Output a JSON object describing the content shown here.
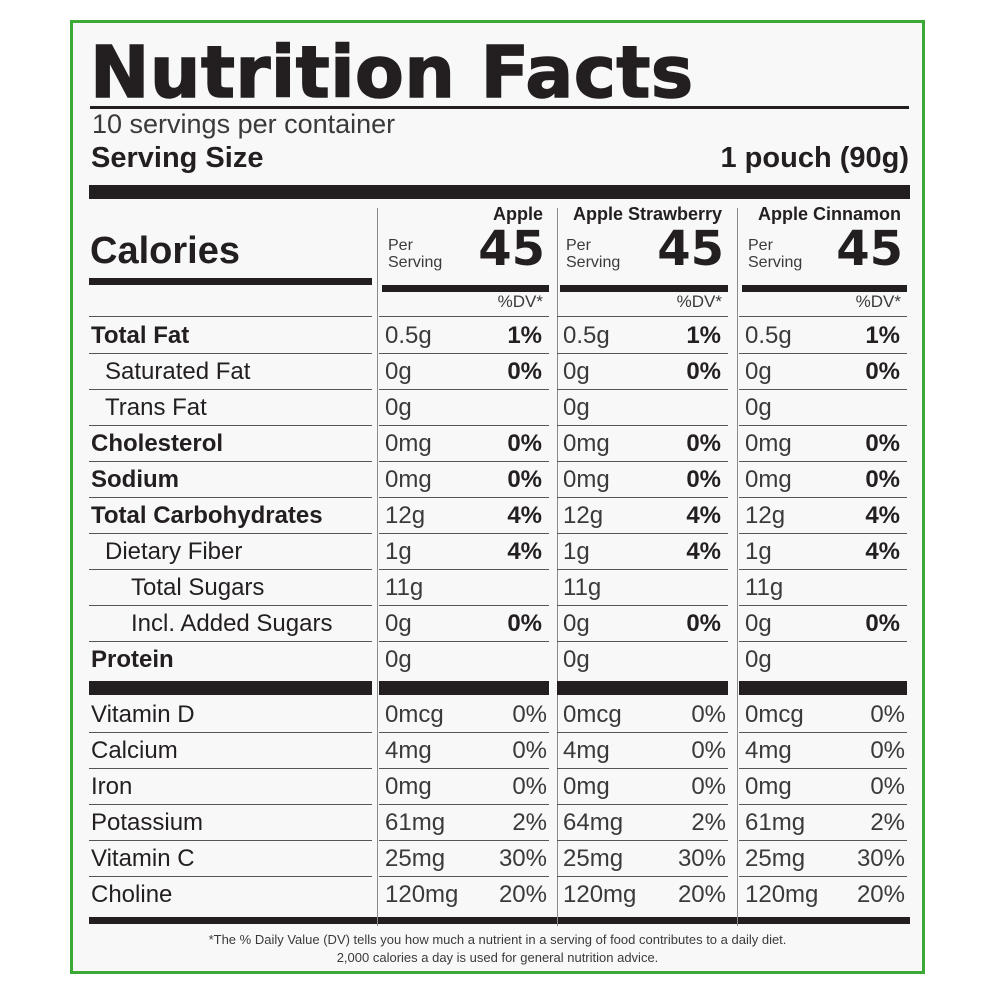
{
  "label": {
    "title": "Nutrition Facts",
    "servings_per_container": "10 servings per container",
    "serving_size_label": "Serving Size",
    "serving_size_value": "1 pouch (90g)",
    "calories_label": "Calories",
    "dv_header": "%DV*",
    "per_serving_line1": "Per",
    "per_serving_line2": "Serving",
    "footnote_line1": "*The % Daily Value (DV) tells you how much a nutrient in a serving of food contributes to a daily diet.",
    "footnote_line2": "2,000 calories a day is used for general nutrition advice."
  },
  "columns": [
    {
      "name": "Apple",
      "calories": "45"
    },
    {
      "name": "Apple Strawberry",
      "calories": "45"
    },
    {
      "name": "Apple Cinnamon",
      "calories": "45"
    }
  ],
  "nutrients": [
    {
      "label": "Total Fat",
      "bold": true,
      "indent": 0,
      "values": [
        [
          "0.5g",
          "1%"
        ],
        [
          "0.5g",
          "1%"
        ],
        [
          "0.5g",
          "1%"
        ]
      ]
    },
    {
      "label": "Saturated Fat",
      "bold": false,
      "indent": 1,
      "values": [
        [
          "0g",
          "0%"
        ],
        [
          "0g",
          "0%"
        ],
        [
          "0g",
          "0%"
        ]
      ]
    },
    {
      "label": "Trans Fat",
      "bold": false,
      "indent": 1,
      "values": [
        [
          "0g",
          ""
        ],
        [
          "0g",
          ""
        ],
        [
          "0g",
          ""
        ]
      ]
    },
    {
      "label": "Cholesterol",
      "bold": true,
      "indent": 0,
      "values": [
        [
          "0mg",
          "0%"
        ],
        [
          "0mg",
          "0%"
        ],
        [
          "0mg",
          "0%"
        ]
      ]
    },
    {
      "label": "Sodium",
      "bold": true,
      "indent": 0,
      "values": [
        [
          "0mg",
          "0%"
        ],
        [
          "0mg",
          "0%"
        ],
        [
          "0mg",
          "0%"
        ]
      ]
    },
    {
      "label": "Total Carbohydrates",
      "bold": true,
      "indent": 0,
      "values": [
        [
          "12g",
          "4%"
        ],
        [
          "12g",
          "4%"
        ],
        [
          "12g",
          "4%"
        ]
      ]
    },
    {
      "label": "Dietary Fiber",
      "bold": false,
      "indent": 1,
      "values": [
        [
          "1g",
          "4%"
        ],
        [
          "1g",
          "4%"
        ],
        [
          "1g",
          "4%"
        ]
      ]
    },
    {
      "label": "Total Sugars",
      "bold": false,
      "indent": 2,
      "values": [
        [
          "11g",
          ""
        ],
        [
          "11g",
          ""
        ],
        [
          "11g",
          ""
        ]
      ]
    },
    {
      "label": "Incl. Added Sugars",
      "bold": false,
      "indent": 2,
      "values": [
        [
          "0g",
          "0%"
        ],
        [
          "0g",
          "0%"
        ],
        [
          "0g",
          "0%"
        ]
      ]
    },
    {
      "label": "Protein",
      "bold": true,
      "indent": 0,
      "values": [
        [
          "0g",
          ""
        ],
        [
          "0g",
          ""
        ],
        [
          "0g",
          ""
        ]
      ]
    }
  ],
  "vitamins": [
    {
      "label": "Vitamin D",
      "values": [
        [
          "0mcg",
          "0%"
        ],
        [
          "0mcg",
          "0%"
        ],
        [
          "0mcg",
          "0%"
        ]
      ]
    },
    {
      "label": "Calcium",
      "values": [
        [
          "4mg",
          "0%"
        ],
        [
          "4mg",
          "0%"
        ],
        [
          "4mg",
          "0%"
        ]
      ]
    },
    {
      "label": "Iron",
      "values": [
        [
          "0mg",
          "0%"
        ],
        [
          "0mg",
          "0%"
        ],
        [
          "0mg",
          "0%"
        ]
      ]
    },
    {
      "label": "Potassium",
      "values": [
        [
          "61mg",
          "2%"
        ],
        [
          "64mg",
          "2%"
        ],
        [
          "61mg",
          "2%"
        ]
      ]
    },
    {
      "label": "Vitamin C",
      "values": [
        [
          "25mg",
          "30%"
        ],
        [
          "25mg",
          "30%"
        ],
        [
          "25mg",
          "30%"
        ]
      ]
    },
    {
      "label": "Choline",
      "values": [
        [
          "120mg",
          "20%"
        ],
        [
          "120mg",
          "20%"
        ],
        [
          "120mg",
          "20%"
        ]
      ]
    }
  ],
  "colors": {
    "border": "#3aa935",
    "ink": "#231f20",
    "background": "#f8f8f8"
  }
}
